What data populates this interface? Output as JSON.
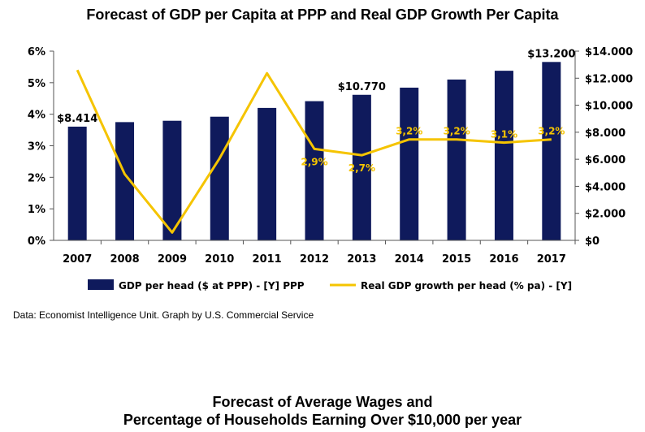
{
  "chart_data": {
    "type": "bar",
    "title": "Forecast of GDP per Capita at PPP and Real GDP Growth Per Capita",
    "categories": [
      "2007",
      "2008",
      "2009",
      "2010",
      "2011",
      "2012",
      "2013",
      "2014",
      "2015",
      "2016",
      "2017"
    ],
    "series": [
      {
        "name": "GDP per head ($ at PPP) - [Y] PPP",
        "type": "bar",
        "axis": "right",
        "color": "#0f1a5c",
        "values": [
          8414,
          8750,
          8850,
          9150,
          9800,
          10300,
          10770,
          11300,
          11900,
          12550,
          13200
        ]
      },
      {
        "name": "Real GDP growth per head (% pa) - [Y]",
        "type": "line",
        "axis": "left",
        "color": "#f5c400",
        "values": [
          5.4,
          2.1,
          0.25,
          2.6,
          5.3,
          2.9,
          2.7,
          3.2,
          3.2,
          3.1,
          3.2
        ]
      }
    ],
    "data_labels": [
      {
        "series": 0,
        "index": 0,
        "text": "$8.414"
      },
      {
        "series": 0,
        "index": 6,
        "text": "$10.770"
      },
      {
        "series": 0,
        "index": 10,
        "text": "$13.200"
      },
      {
        "series": 1,
        "index": 5,
        "text": "2,9%"
      },
      {
        "series": 1,
        "index": 6,
        "text": "2,7%"
      },
      {
        "series": 1,
        "index": 7,
        "text": "3,2%"
      },
      {
        "series": 1,
        "index": 8,
        "text": "3,2%"
      },
      {
        "series": 1,
        "index": 9,
        "text": "3,1%"
      },
      {
        "series": 1,
        "index": 10,
        "text": "3,2%"
      }
    ],
    "left_axis": {
      "ylim": [
        0,
        6
      ],
      "ticks": [
        0,
        1,
        2,
        3,
        4,
        5,
        6
      ],
      "tick_labels": [
        "0%",
        "1%",
        "2%",
        "3%",
        "4%",
        "5%",
        "6%"
      ]
    },
    "right_axis": {
      "ylim": [
        0,
        14000
      ],
      "ticks": [
        0,
        2000,
        4000,
        6000,
        8000,
        10000,
        12000,
        14000
      ],
      "tick_labels": [
        "$0",
        "$2.000",
        "$4.000",
        "$6.000",
        "$8.000",
        "$10.000",
        "$12.000",
        "$14.000"
      ]
    },
    "grid": false,
    "legend_position": "bottom"
  },
  "source_note": "Data: Economist Intelligence Unit. Graph by U.S. Commercial Service",
  "next_section": {
    "title_line1": "Forecast of Average Wages and",
    "title_line2": "Percentage of Households Earning Over $10,000 per year"
  }
}
